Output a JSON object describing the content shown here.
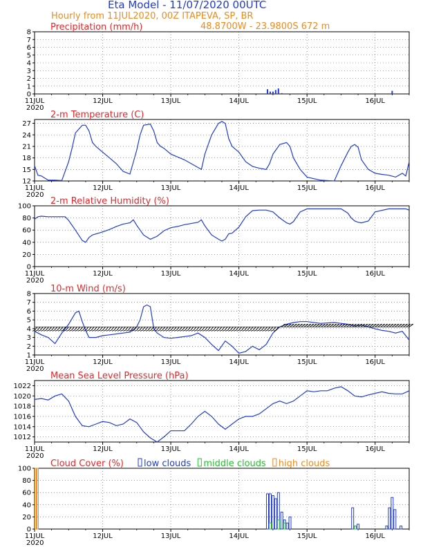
{
  "header": {
    "title": "Eta Model - 11/07/2020 00UTC",
    "line1": "Hourly from 11JUL2020, 00Z  ITAPEVA, SP, BR",
    "line2": "48.8700W - 23.9800S      672  m"
  },
  "x_axis": {
    "tick_labels": [
      "11JUL",
      "12JUL",
      "13JUL",
      "14JUL",
      "15JUL",
      "16JUL"
    ],
    "year_label": "2020",
    "range_days": [
      0,
      5.5
    ]
  },
  "colors": {
    "title": "#1f3ad6",
    "subtitle": "#f08a1c",
    "panel_title": "#e8262a",
    "series": "#1f3ad6",
    "low_clouds": "#1f3ad6",
    "middle_clouds": "#22c22c",
    "high_clouds": "#f08a1c",
    "wind_barbs": "#000000"
  },
  "chart_data": [
    {
      "type": "bar",
      "title": "Precipitation (mm/h)",
      "ylim": [
        0,
        8
      ],
      "yticks": [
        "0",
        "1",
        "2",
        "3",
        "4",
        "5",
        "6",
        "7",
        "8"
      ],
      "x": [
        3.42,
        3.46,
        3.5,
        3.54,
        3.58,
        3.63,
        3.75,
        4.67,
        5.25
      ],
      "values": [
        0.6,
        0.3,
        0.3,
        0.5,
        0.7,
        0.1,
        0.05,
        0.05,
        0.4
      ]
    },
    {
      "type": "line",
      "title": "2-m Temperature (C)",
      "ylim": [
        12,
        28
      ],
      "yticks": [
        "12",
        "15",
        "18",
        "21",
        "24",
        "27"
      ],
      "x": [
        0,
        0.05,
        0.1,
        0.2,
        0.3,
        0.4,
        0.5,
        0.55,
        0.6,
        0.7,
        0.75,
        0.8,
        0.85,
        0.9,
        1.0,
        1.1,
        1.2,
        1.3,
        1.4,
        1.5,
        1.55,
        1.6,
        1.7,
        1.75,
        1.8,
        1.85,
        1.9,
        2.0,
        2.2,
        2.4,
        2.45,
        2.5,
        2.6,
        2.7,
        2.75,
        2.8,
        2.85,
        2.9,
        3.0,
        3.1,
        3.2,
        3.3,
        3.4,
        3.45,
        3.5,
        3.6,
        3.7,
        3.75,
        3.8,
        3.9,
        4.0,
        4.2,
        4.4,
        4.5,
        4.6,
        4.65,
        4.7,
        4.75,
        4.8,
        4.9,
        5.0,
        5.1,
        5.2,
        5.3,
        5.4,
        5.45,
        5.5
      ],
      "values": [
        16,
        13.5,
        13.3,
        12.2,
        12.2,
        12.1,
        17,
        20.5,
        24.5,
        26.5,
        26.5,
        25,
        22,
        21,
        19.5,
        18,
        16.5,
        14.5,
        13.8,
        20,
        24,
        26.5,
        26.8,
        25,
        22,
        21,
        20.5,
        19,
        17.5,
        15.5,
        15,
        19,
        24,
        27,
        27.5,
        27,
        23,
        21,
        19.5,
        17,
        15.8,
        15.3,
        15,
        16.5,
        19,
        21.5,
        22,
        21,
        18,
        15,
        13,
        12.2,
        12,
        16,
        19.5,
        21,
        21.5,
        20.8,
        17.5,
        15,
        14,
        13.7,
        13.5,
        13,
        14,
        13.3,
        17
      ]
    },
    {
      "type": "line",
      "title": "2-m Relative Humidity (%)",
      "ylim": [
        0,
        100
      ],
      "yticks": [
        "0",
        "20",
        "40",
        "60",
        "80",
        "100"
      ],
      "x": [
        0,
        0.05,
        0.1,
        0.2,
        0.3,
        0.45,
        0.5,
        0.6,
        0.7,
        0.75,
        0.8,
        0.85,
        1.0,
        1.1,
        1.2,
        1.3,
        1.4,
        1.45,
        1.5,
        1.6,
        1.7,
        1.8,
        1.9,
        2.0,
        2.1,
        2.2,
        2.4,
        2.45,
        2.5,
        2.6,
        2.7,
        2.75,
        2.8,
        2.85,
        2.9,
        3.0,
        3.1,
        3.2,
        3.3,
        3.4,
        3.5,
        3.6,
        3.7,
        3.75,
        3.8,
        3.9,
        4.0,
        4.2,
        4.3,
        4.4,
        4.5,
        4.6,
        4.65,
        4.7,
        4.75,
        4.8,
        4.9,
        5.0,
        5.2,
        5.3,
        5.4,
        5.45,
        5.5
      ],
      "values": [
        78,
        82,
        83,
        82,
        82,
        82,
        76,
        60,
        43,
        40,
        48,
        52,
        57,
        61,
        66,
        70,
        72,
        77,
        68,
        52,
        45,
        50,
        59,
        64,
        66,
        69,
        73,
        77,
        67,
        52,
        45,
        42,
        45,
        54,
        55,
        65,
        82,
        92,
        93,
        93,
        90,
        80,
        72,
        70,
        74,
        90,
        95,
        95,
        95,
        95,
        95,
        88,
        80,
        75,
        73,
        72,
        75,
        90,
        95,
        95,
        95,
        95,
        93
      ]
    },
    {
      "type": "line",
      "title": "10-m Wind (m/s)",
      "ylim": [
        1,
        8
      ],
      "yticks": [
        "1",
        "2",
        "3",
        "4",
        "5",
        "6",
        "7",
        "8"
      ],
      "x": [
        0,
        0.1,
        0.2,
        0.3,
        0.4,
        0.5,
        0.6,
        0.65,
        0.7,
        0.75,
        0.8,
        0.9,
        1.0,
        1.1,
        1.2,
        1.3,
        1.4,
        1.5,
        1.55,
        1.6,
        1.65,
        1.7,
        1.75,
        1.8,
        1.9,
        2.0,
        2.1,
        2.2,
        2.3,
        2.4,
        2.5,
        2.6,
        2.7,
        2.8,
        2.9,
        3.0,
        3.1,
        3.2,
        3.3,
        3.4,
        3.5,
        3.6,
        3.7,
        3.8,
        3.9,
        4.0,
        4.2,
        4.4,
        4.5,
        4.6,
        4.7,
        4.8,
        4.9,
        5.0,
        5.1,
        5.2,
        5.3,
        5.4,
        5.5
      ],
      "values": [
        3.7,
        3.3,
        3.0,
        2.3,
        3.5,
        4.5,
        5.8,
        6.0,
        4.8,
        3.8,
        3.0,
        3.0,
        3.2,
        3.3,
        3.4,
        3.5,
        3.6,
        4.2,
        5.0,
        6.5,
        6.7,
        6.5,
        4.0,
        3.5,
        3.0,
        2.9,
        3.0,
        3.1,
        3.2,
        3.5,
        3.0,
        2.2,
        1.5,
        2.6,
        2.0,
        1.2,
        1.4,
        2.0,
        1.6,
        2.2,
        3.5,
        4.2,
        4.5,
        4.7,
        4.8,
        4.8,
        4.6,
        4.7,
        4.6,
        4.5,
        4.3,
        4.4,
        4.2,
        4.0,
        3.8,
        3.7,
        3.5,
        3.7,
        2.7
      ]
    },
    {
      "type": "line",
      "title": "Mean Sea Level Pressure (hPa)",
      "ylim": [
        1011,
        1023
      ],
      "yticks": [
        "1012",
        "1014",
        "1016",
        "1018",
        "1020",
        "1022"
      ],
      "x": [
        0,
        0.1,
        0.2,
        0.3,
        0.4,
        0.5,
        0.6,
        0.7,
        0.8,
        0.9,
        1.0,
        1.1,
        1.2,
        1.3,
        1.4,
        1.5,
        1.6,
        1.7,
        1.8,
        1.9,
        2.0,
        2.1,
        2.2,
        2.3,
        2.4,
        2.5,
        2.6,
        2.7,
        2.8,
        2.9,
        3.0,
        3.1,
        3.2,
        3.3,
        3.4,
        3.5,
        3.6,
        3.7,
        3.8,
        3.9,
        4.0,
        4.1,
        4.2,
        4.3,
        4.4,
        4.5,
        4.6,
        4.7,
        4.8,
        4.9,
        5.0,
        5.1,
        5.2,
        5.3,
        5.4,
        5.5
      ],
      "values": [
        1019.3,
        1019.5,
        1019.2,
        1020.0,
        1020.4,
        1019.0,
        1016.0,
        1014.2,
        1014.0,
        1014.5,
        1015.0,
        1014.8,
        1014.2,
        1014.5,
        1015.5,
        1014.8,
        1013.0,
        1011.8,
        1011.0,
        1012.0,
        1013.2,
        1013.2,
        1013.2,
        1014.5,
        1016.0,
        1017.0,
        1016.0,
        1014.5,
        1013.5,
        1014.5,
        1015.5,
        1016.0,
        1016.0,
        1016.5,
        1017.5,
        1018.5,
        1019.0,
        1018.5,
        1019.0,
        1020.0,
        1021.0,
        1020.8,
        1021.0,
        1021.0,
        1021.5,
        1021.8,
        1021.0,
        1020.0,
        1019.8,
        1020.2,
        1020.5,
        1020.8,
        1020.5,
        1020.4,
        1020.4,
        1021.0
      ]
    },
    {
      "type": "bar",
      "title": "Cloud Cover (%)",
      "ylim": [
        0,
        100
      ],
      "yticks": [
        "0",
        "20",
        "40",
        "60",
        "80",
        "100"
      ],
      "series": [
        {
          "name": "low clouds",
          "x": [
            3.42,
            3.46,
            3.5,
            3.54,
            3.58,
            3.63,
            3.67,
            3.71,
            3.75,
            4.67,
            4.71,
            4.75,
            5.17,
            5.21,
            5.25,
            5.29,
            5.38
          ],
          "values": [
            58,
            58,
            55,
            50,
            60,
            28,
            15,
            10,
            20,
            35,
            5,
            8,
            5,
            35,
            52,
            32,
            5
          ]
        },
        {
          "name": "middle clouds",
          "x": [
            3.46,
            3.58,
            3.67,
            4.71
          ],
          "values": [
            10,
            15,
            10,
            5
          ]
        },
        {
          "name": "high clouds",
          "x": [
            0.02,
            0.04
          ],
          "values": [
            100,
            100
          ]
        }
      ]
    }
  ]
}
